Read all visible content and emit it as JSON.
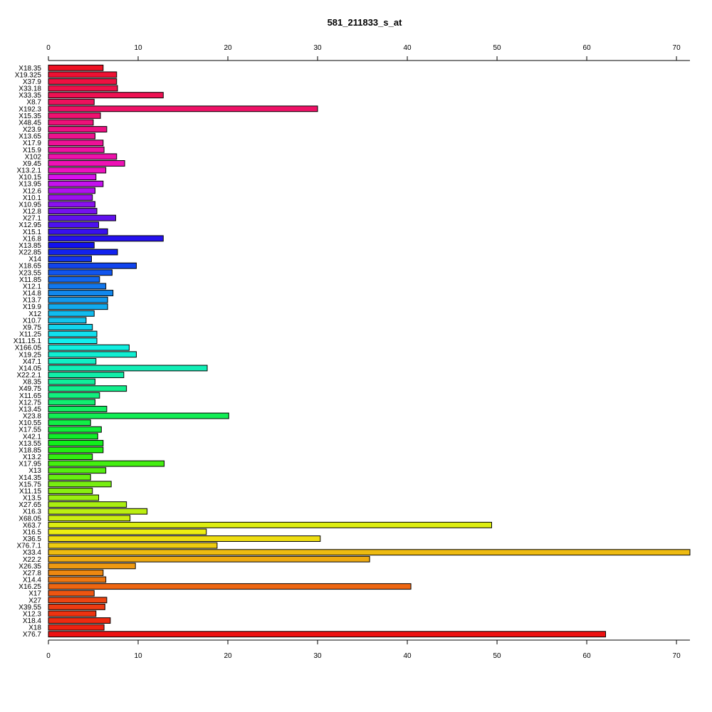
{
  "chart_data": {
    "type": "bar",
    "orientation": "horizontal",
    "title": "581_211833_s_at",
    "xlabel": "",
    "ylabel": "",
    "xlim": [
      0,
      71.5
    ],
    "ticks": [
      0,
      10,
      20,
      30,
      40,
      50,
      60,
      70
    ],
    "tick_labels": [
      "0",
      "10",
      "20",
      "30",
      "40",
      "50",
      "60",
      "70"
    ],
    "axis_positions": [
      "top",
      "bottom"
    ],
    "categories": [
      "X18.35",
      "X19.325",
      "X37.9",
      "X33.18",
      "X33.35",
      "X8.7",
      "X192.3",
      "X15.35",
      "X48.45",
      "X23.9",
      "X13.65",
      "X17.9",
      "X15.9",
      "X102",
      "X9.45",
      "X13.2.1",
      "X10.15",
      "X13.95",
      "X12.6",
      "X10.1",
      "X10.95",
      "X12.8",
      "X27.1",
      "X12.95",
      "X15.1",
      "X16.8",
      "X13.85",
      "X22.85",
      "X14",
      "X18.65",
      "X23.55",
      "X11.85",
      "X12.1",
      "X14.8",
      "X13.7",
      "X19.9",
      "X12",
      "X10.7",
      "X9.75",
      "X11.25",
      "X11.15.1",
      "X166.05",
      "X19.25",
      "X47.1",
      "X14.05",
      "X22.2.1",
      "X8.35",
      "X49.75",
      "X11.65",
      "X12.75",
      "X13.45",
      "X23.8",
      "X10.55",
      "X17.55",
      "X42.1",
      "X13.55",
      "X18.85",
      "X13.2",
      "X17.95",
      "X13",
      "X14.35",
      "X15.75",
      "X11.15",
      "X13.5",
      "X27.65",
      "X16.3",
      "X68.05",
      "X63.7",
      "X16.5",
      "X36.5",
      "X76.7.1",
      "X33.4",
      "X22.2",
      "X26.35",
      "X27.8",
      "X14.4",
      "X16.25",
      "X17",
      "X27",
      "X39.55",
      "X12.3",
      "X18.4",
      "X18",
      "X76.7"
    ],
    "values": [
      6.1,
      7.6,
      7.6,
      7.7,
      12.8,
      5.1,
      30.0,
      5.8,
      5.0,
      6.5,
      5.2,
      6.1,
      6.2,
      7.6,
      8.5,
      6.4,
      5.3,
      6.1,
      5.2,
      4.9,
      5.2,
      5.4,
      7.5,
      5.6,
      6.6,
      12.8,
      5.1,
      7.7,
      4.8,
      9.8,
      7.1,
      5.7,
      6.4,
      7.2,
      6.6,
      6.6,
      5.1,
      4.2,
      4.9,
      5.4,
      5.4,
      9.0,
      9.8,
      5.3,
      17.7,
      8.4,
      5.2,
      8.7,
      5.7,
      5.2,
      6.5,
      20.1,
      4.7,
      5.9,
      5.5,
      6.1,
      6.1,
      4.9,
      12.9,
      6.4,
      4.7,
      7.0,
      4.9,
      5.6,
      8.7,
      11.0,
      9.1,
      49.4,
      17.6,
      30.3,
      18.8,
      71.5,
      35.8,
      9.7,
      6.1,
      6.4,
      40.4,
      5.1,
      6.5,
      6.3,
      5.3,
      6.9,
      6.2,
      62.1
    ],
    "colors": [
      "#ee1122",
      "#ee1133",
      "#ee1141",
      "#ee114a",
      "#ee1153",
      "#ee115d",
      "#ee1166",
      "#ee1170",
      "#ee1179",
      "#ee1183",
      "#ee118d",
      "#ee1197",
      "#ee11a1",
      "#ee11ab",
      "#ee11b5",
      "#ee11bf",
      "#d911ee",
      "#c511ee",
      "#b111ee",
      "#9d11ee",
      "#8911ee",
      "#7511ee",
      "#6111ee",
      "#4d11ee",
      "#3911ee",
      "#2511ee",
      "#1111ee",
      "#1122ee",
      "#1133ee",
      "#1144ee",
      "#1155ee",
      "#1166ee",
      "#1177ee",
      "#1188ee",
      "#1199ee",
      "#11aaee",
      "#11bbee",
      "#11c5ee",
      "#11d4ee",
      "#11e0ee",
      "#11eeee",
      "#11eee0",
      "#11eed2",
      "#11eec4",
      "#11eeb6",
      "#11eea8",
      "#11ee9a",
      "#11ee8c",
      "#11ee7e",
      "#11ee70",
      "#11ee62",
      "#11ee54",
      "#11ee46",
      "#11ee38",
      "#11ee2a",
      "#11ee1c",
      "#22ee11",
      "#33ee11",
      "#44ee11",
      "#55ee11",
      "#66ee11",
      "#77ee11",
      "#88ee11",
      "#99ee11",
      "#aaee11",
      "#bbee11",
      "#ccee11",
      "#ddee11",
      "#eeee11",
      "#eedd11",
      "#eecc11",
      "#eebb11",
      "#eeaa11",
      "#ee9911",
      "#ee8811",
      "#ee7711",
      "#ee6611",
      "#ee5511",
      "#ee4411",
      "#ee3b11",
      "#ee3311",
      "#ee2a11",
      "#ee2211",
      "#ee1111"
    ],
    "grid": false,
    "legend": "none"
  }
}
